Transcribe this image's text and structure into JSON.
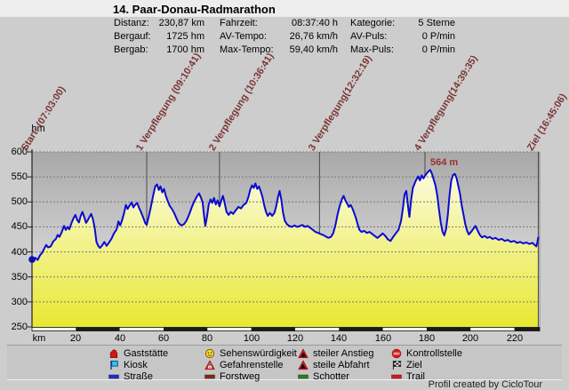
{
  "title": "14. Paar-Donau-Radmarathon",
  "stats": {
    "columns": [
      {
        "rows": [
          {
            "label": "Distanz:",
            "value": "230,87 km"
          },
          {
            "label": "Bergauf:",
            "value": "1725 hm"
          },
          {
            "label": "Bergab:",
            "value": "1700 hm"
          }
        ]
      },
      {
        "rows": [
          {
            "label": "Fahrzeit:",
            "value": "08:37:40 h"
          },
          {
            "label": "AV-Tempo:",
            "value": "26,76 km/h"
          },
          {
            "label": "Max-Tempo:",
            "value": "59,40 km/h"
          }
        ]
      },
      {
        "rows": [
          {
            "label": "Kategorie:",
            "value": "5 Sterne"
          },
          {
            "label": "AV-Puls:",
            "value": "0 P/min"
          },
          {
            "label": "Max-Puls:",
            "value": "0 P/min"
          }
        ]
      }
    ]
  },
  "chart_data": {
    "type": "area",
    "xlabel": "km",
    "ylabel": "hm",
    "xlim": [
      0,
      231.5
    ],
    "ylim": [
      250,
      600
    ],
    "yticks": [
      600,
      550,
      500,
      450,
      400,
      350,
      300,
      250
    ],
    "xticks": [
      20,
      40,
      60,
      80,
      100,
      120,
      140,
      160,
      180,
      200,
      220
    ],
    "grid": true,
    "line_color": "#0a0ad2",
    "event_line_color": "#4a4a4a",
    "event_label_color": "#7b3434",
    "plot_gradient": [
      "#a8a8a8",
      "#f0f0f0"
    ],
    "fill_gradient": [
      "#fbfbdf",
      "#e8e832"
    ],
    "scalebar_colors": [
      "#f2f2f2",
      "#1a1a1a"
    ],
    "scalebar_interval_km": 20,
    "events": [
      {
        "name": "start",
        "label": "Start: (07:03:00)",
        "km": 0
      },
      {
        "name": "verpflegung-1",
        "label": "1 Verpflegung (09:10:41)",
        "km": 52.3
      },
      {
        "name": "verpflegung-2",
        "label": "2 Verpflegung (10:36:41)",
        "km": 85.5
      },
      {
        "name": "verpflegung-3",
        "label": "3 Verpflegung(12:32:19)",
        "km": 131.1
      },
      {
        "name": "verpflegung-4",
        "label": "4 Verpflegung(14:39:35)",
        "km": 179.2
      },
      {
        "name": "ziel",
        "label": "Ziel (16:45:06)",
        "km": 230.87,
        "full_height": true
      }
    ],
    "peak_annotation": {
      "text": "564 m",
      "km": 181.6,
      "hm": 564
    },
    "series": [
      {
        "name": "Höhenprofil",
        "points": [
          [
            0,
            385
          ],
          [
            0.8,
            381
          ],
          [
            1.6,
            388
          ],
          [
            2.6,
            384
          ],
          [
            3.6,
            393
          ],
          [
            4.6,
            398
          ],
          [
            5.7,
            408
          ],
          [
            6.5,
            414
          ],
          [
            7.3,
            409
          ],
          [
            8.5,
            411
          ],
          [
            9.7,
            421
          ],
          [
            10.9,
            426
          ],
          [
            11.7,
            434
          ],
          [
            12.5,
            430
          ],
          [
            13.4,
            438
          ],
          [
            14.6,
            452
          ],
          [
            15.4,
            444
          ],
          [
            16.2,
            450
          ],
          [
            17.0,
            445
          ],
          [
            18.2,
            460
          ],
          [
            19.0,
            468
          ],
          [
            19.8,
            474
          ],
          [
            20.6,
            464
          ],
          [
            21.4,
            459
          ],
          [
            22.2,
            472
          ],
          [
            23.0,
            480
          ],
          [
            23.8,
            470
          ],
          [
            24.6,
            458
          ],
          [
            25.4,
            463
          ],
          [
            26.2,
            470
          ],
          [
            27.0,
            476
          ],
          [
            27.8,
            465
          ],
          [
            28.6,
            448
          ],
          [
            29.4,
            420
          ],
          [
            30.2,
            412
          ],
          [
            31.0,
            408
          ],
          [
            32.0,
            413
          ],
          [
            33.0,
            420
          ],
          [
            34.0,
            412
          ],
          [
            35.0,
            418
          ],
          [
            36.2,
            426
          ],
          [
            37.4,
            437
          ],
          [
            38.6,
            445
          ],
          [
            39.4,
            461
          ],
          [
            40.2,
            453
          ],
          [
            41.0,
            462
          ],
          [
            42.0,
            478
          ],
          [
            42.8,
            494
          ],
          [
            43.6,
            486
          ],
          [
            44.4,
            492
          ],
          [
            45.4,
            499
          ],
          [
            46.2,
            489
          ],
          [
            47.0,
            494
          ],
          [
            48.0,
            498
          ],
          [
            48.8,
            488
          ],
          [
            49.6,
            481
          ],
          [
            50.6,
            470
          ],
          [
            51.6,
            458
          ],
          [
            52.3,
            454
          ],
          [
            53.2,
            470
          ],
          [
            54.2,
            490
          ],
          [
            55.2,
            512
          ],
          [
            56.2,
            531
          ],
          [
            57.0,
            535
          ],
          [
            57.8,
            524
          ],
          [
            58.6,
            531
          ],
          [
            59.4,
            519
          ],
          [
            60.2,
            526
          ],
          [
            61.0,
            512
          ],
          [
            61.8,
            503
          ],
          [
            62.8,
            492
          ],
          [
            63.8,
            486
          ],
          [
            64.8,
            478
          ],
          [
            65.8,
            468
          ],
          [
            66.8,
            458
          ],
          [
            68.0,
            453
          ],
          [
            69.2,
            455
          ],
          [
            70.4,
            462
          ],
          [
            71.6,
            474
          ],
          [
            72.8,
            489
          ],
          [
            74.0,
            501
          ],
          [
            75.2,
            511
          ],
          [
            76.2,
            517
          ],
          [
            77.0,
            509
          ],
          [
            77.8,
            499
          ],
          [
            78.4,
            474
          ],
          [
            79.0,
            452
          ],
          [
            79.8,
            470
          ],
          [
            80.6,
            495
          ],
          [
            81.4,
            505
          ],
          [
            82.2,
            498
          ],
          [
            83.0,
            508
          ],
          [
            83.8,
            495
          ],
          [
            84.6,
            503
          ],
          [
            85.5,
            491
          ],
          [
            86.3,
            503
          ],
          [
            87.1,
            512
          ],
          [
            87.9,
            497
          ],
          [
            88.7,
            480
          ],
          [
            89.7,
            474
          ],
          [
            90.7,
            480
          ],
          [
            91.7,
            476
          ],
          [
            92.9,
            483
          ],
          [
            94.1,
            490
          ],
          [
            95.3,
            487
          ],
          [
            96.5,
            494
          ],
          [
            97.7,
            498
          ],
          [
            98.7,
            510
          ],
          [
            99.5,
            524
          ],
          [
            100.3,
            533
          ],
          [
            101.1,
            528
          ],
          [
            101.9,
            537
          ],
          [
            102.7,
            526
          ],
          [
            103.5,
            531
          ],
          [
            104.3,
            521
          ],
          [
            105.1,
            510
          ],
          [
            105.9,
            493
          ],
          [
            106.7,
            480
          ],
          [
            107.5,
            472
          ],
          [
            108.5,
            478
          ],
          [
            109.5,
            472
          ],
          [
            110.5,
            478
          ],
          [
            111.3,
            490
          ],
          [
            112.1,
            508
          ],
          [
            112.9,
            522
          ],
          [
            113.7,
            505
          ],
          [
            114.5,
            478
          ],
          [
            115.3,
            462
          ],
          [
            116.3,
            455
          ],
          [
            117.3,
            452
          ],
          [
            118.5,
            450
          ],
          [
            119.7,
            453
          ],
          [
            120.9,
            450
          ],
          [
            122.1,
            452
          ],
          [
            123.3,
            454
          ],
          [
            124.5,
            450
          ],
          [
            125.7,
            452
          ],
          [
            126.9,
            448
          ],
          [
            128.1,
            444
          ],
          [
            129.3,
            440
          ],
          [
            130.5,
            438
          ],
          [
            131.5,
            436
          ],
          [
            132.7,
            434
          ],
          [
            133.9,
            431
          ],
          [
            135.1,
            428
          ],
          [
            136.3,
            430
          ],
          [
            137.3,
            437
          ],
          [
            138.3,
            452
          ],
          [
            139.3,
            474
          ],
          [
            140.3,
            492
          ],
          [
            141.3,
            505
          ],
          [
            142.1,
            512
          ],
          [
            142.9,
            503
          ],
          [
            143.7,
            497
          ],
          [
            144.5,
            490
          ],
          [
            145.3,
            494
          ],
          [
            146.1,
            487
          ],
          [
            146.9,
            478
          ],
          [
            147.7,
            468
          ],
          [
            148.5,
            455
          ],
          [
            149.3,
            444
          ],
          [
            150.3,
            440
          ],
          [
            151.5,
            442
          ],
          [
            152.7,
            438
          ],
          [
            153.9,
            440
          ],
          [
            155.1,
            436
          ],
          [
            156.3,
            432
          ],
          [
            157.5,
            428
          ],
          [
            158.7,
            432
          ],
          [
            159.9,
            437
          ],
          [
            161.1,
            432
          ],
          [
            162.3,
            425
          ],
          [
            163.5,
            422
          ],
          [
            164.7,
            430
          ],
          [
            165.9,
            437
          ],
          [
            167.1,
            444
          ],
          [
            168.3,
            462
          ],
          [
            169.1,
            486
          ],
          [
            169.9,
            515
          ],
          [
            170.7,
            522
          ],
          [
            171.5,
            490
          ],
          [
            172.1,
            470
          ],
          [
            172.9,
            505
          ],
          [
            173.7,
            528
          ],
          [
            174.5,
            537
          ],
          [
            175.3,
            545
          ],
          [
            176.1,
            551
          ],
          [
            176.9,
            543
          ],
          [
            177.7,
            553
          ],
          [
            178.5,
            547
          ],
          [
            179.2,
            552
          ],
          [
            180.0,
            557
          ],
          [
            180.8,
            561
          ],
          [
            181.6,
            564
          ],
          [
            182.4,
            556
          ],
          [
            183.2,
            544
          ],
          [
            184.0,
            533
          ],
          [
            184.8,
            513
          ],
          [
            185.6,
            484
          ],
          [
            186.4,
            458
          ],
          [
            187.2,
            441
          ],
          [
            188.0,
            433
          ],
          [
            188.8,
            445
          ],
          [
            189.6,
            474
          ],
          [
            190.4,
            513
          ],
          [
            191.2,
            543
          ],
          [
            192.0,
            554
          ],
          [
            192.8,
            556
          ],
          [
            193.6,
            548
          ],
          [
            194.4,
            532
          ],
          [
            195.2,
            515
          ],
          [
            196.0,
            492
          ],
          [
            196.8,
            474
          ],
          [
            197.6,
            455
          ],
          [
            198.4,
            442
          ],
          [
            199.2,
            435
          ],
          [
            200.2,
            440
          ],
          [
            201.2,
            446
          ],
          [
            202.2,
            452
          ],
          [
            203.2,
            443
          ],
          [
            204.2,
            434
          ],
          [
            205.2,
            429
          ],
          [
            206.4,
            432
          ],
          [
            207.6,
            428
          ],
          [
            208.8,
            430
          ],
          [
            210.0,
            426
          ],
          [
            211.4,
            428
          ],
          [
            212.8,
            424
          ],
          [
            214.2,
            426
          ],
          [
            215.6,
            422
          ],
          [
            217.0,
            424
          ],
          [
            218.4,
            420
          ],
          [
            219.8,
            422
          ],
          [
            221.2,
            418
          ],
          [
            222.6,
            420
          ],
          [
            224.0,
            417
          ],
          [
            225.4,
            419
          ],
          [
            226.8,
            416
          ],
          [
            228.2,
            418
          ],
          [
            229.2,
            414
          ],
          [
            230.0,
            411
          ],
          [
            230.5,
            420
          ],
          [
            230.9,
            430
          ]
        ]
      }
    ]
  },
  "legend": {
    "columns": [
      [
        {
          "icon": "gaststaette-icon",
          "label": "Gaststätte"
        },
        {
          "icon": "kiosk-icon",
          "label": "Kiosk"
        },
        {
          "icon": "strasse-icon",
          "label": "Straße"
        }
      ],
      [
        {
          "icon": "sehenswuerdigkeit-icon",
          "label": "Sehenswürdigkeit"
        },
        {
          "icon": "gefahrenstelle-icon",
          "label": "Gefahrenstelle"
        },
        {
          "icon": "forstweg-icon",
          "label": "Forstweg"
        }
      ],
      [
        {
          "icon": "steiler-anstieg-icon",
          "label": "steiler Anstieg"
        },
        {
          "icon": "steile-abfahrt-icon",
          "label": "steile Abfahrt"
        },
        {
          "icon": "schotter-icon",
          "label": "Schotter"
        }
      ],
      [
        {
          "icon": "kontrollstelle-icon",
          "label": "Kontrollstelle"
        },
        {
          "icon": "ziel-icon",
          "label": "Ziel"
        },
        {
          "icon": "trail-icon",
          "label": "Trail"
        }
      ]
    ]
  },
  "footer": "Profil created by CicloTour"
}
